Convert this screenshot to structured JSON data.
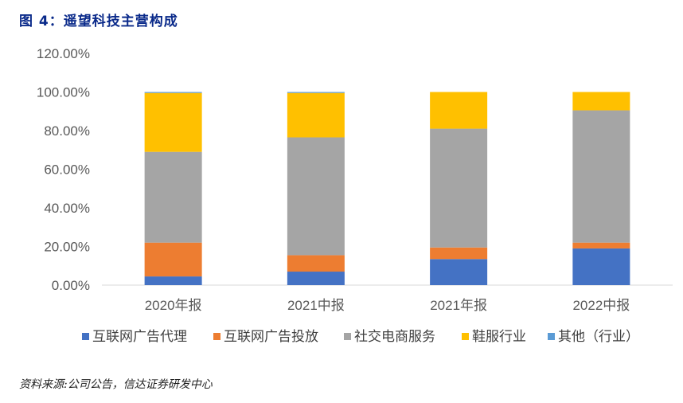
{
  "figure_title": "图 4：遥望科技主营构成",
  "source_note": "资料来源:公司公告，信达证券研发中心",
  "chart_data": {
    "type": "bar",
    "stacked": true,
    "categories": [
      "2020年报",
      "2021中报",
      "2021年报",
      "2022中报"
    ],
    "ylim": [
      0,
      120
    ],
    "yticks": [
      "0.00%",
      "20.00%",
      "40.00%",
      "60.00%",
      "80.00%",
      "100.00%",
      "120.00%"
    ],
    "ytick_values": [
      0,
      20,
      40,
      60,
      80,
      100,
      120
    ],
    "legend_position": "bottom",
    "series": [
      {
        "name": "互联网广告代理",
        "color": "#4472C4",
        "values": [
          4.5,
          7.0,
          13.5,
          19.0
        ]
      },
      {
        "name": "互联网广告投放",
        "color": "#ED7D31",
        "values": [
          17.5,
          8.5,
          6.0,
          3.0
        ]
      },
      {
        "name": "社交电商服务",
        "color": "#A5A5A5",
        "values": [
          47.0,
          61.0,
          61.5,
          68.5
        ]
      },
      {
        "name": "鞋服行业",
        "color": "#FFC000",
        "values": [
          30.5,
          23.0,
          19.0,
          9.5
        ]
      },
      {
        "name": "其他（行业）",
        "color": "#5B9BD5",
        "values": [
          0.5,
          0.5,
          0.0,
          0.0
        ]
      }
    ]
  }
}
